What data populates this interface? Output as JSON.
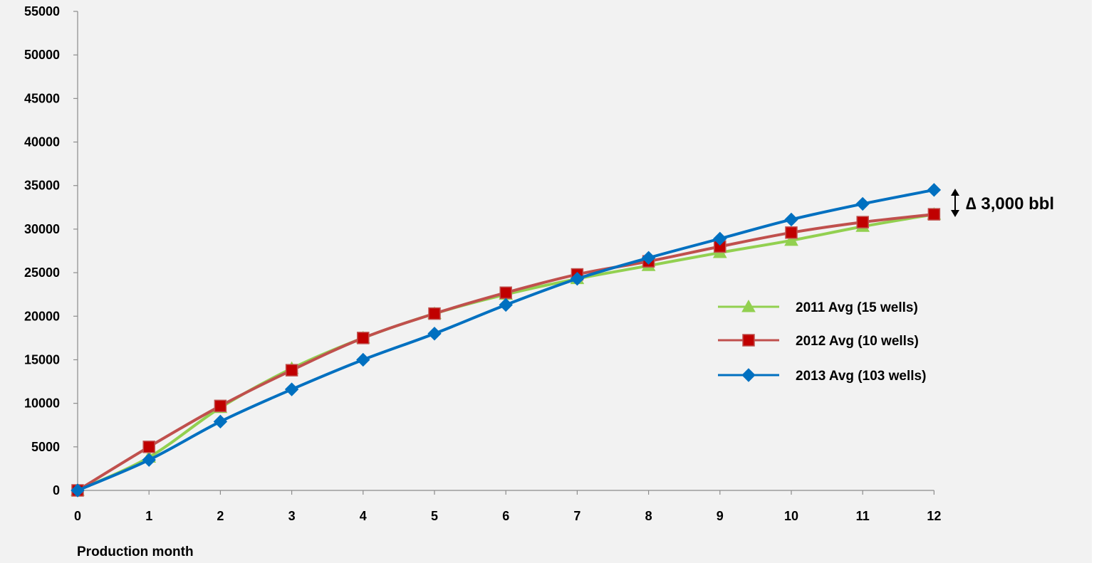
{
  "chart_data": {
    "type": "line",
    "x": [
      0,
      1,
      2,
      3,
      4,
      5,
      6,
      7,
      8,
      9,
      10,
      11,
      12
    ],
    "series": [
      {
        "name": "2011 Avg (15 wells)",
        "color": "#92d050",
        "marker": "triangle",
        "values": [
          0,
          3800,
          9500,
          14000,
          17500,
          20300,
          22500,
          24300,
          25800,
          27300,
          28700,
          30300,
          31700
        ]
      },
      {
        "name": "2012 Avg (10 wells)",
        "color": "#c0504d",
        "marker_color": "#c00000",
        "marker": "square",
        "values": [
          0,
          5000,
          9700,
          13800,
          17500,
          20300,
          22700,
          24800,
          26300,
          28000,
          29600,
          30800,
          31700
        ]
      },
      {
        "name": "2013 Avg (103 wells)",
        "color": "#0070c0",
        "marker": "diamond",
        "values": [
          0,
          3500,
          7900,
          11600,
          15000,
          18000,
          21300,
          24300,
          26700,
          28900,
          31100,
          32900,
          34500
        ]
      }
    ],
    "title": "",
    "xlabel": "Production month",
    "ylabel": "",
    "ylim": [
      0,
      55000
    ],
    "xlim": [
      0,
      12
    ],
    "y_ticks": [
      "0",
      "5000",
      "10000",
      "15000",
      "20000",
      "25000",
      "30000",
      "35000",
      "40000",
      "45000",
      "50000",
      "55000"
    ],
    "x_ticks": [
      "0",
      "1",
      "2",
      "3",
      "4",
      "5",
      "6",
      "7",
      "8",
      "9",
      "10",
      "11",
      "12"
    ],
    "grid": false,
    "legend_position": "right",
    "annotation": {
      "text": "∆ 3,000 bbl",
      "icon": "double-arrow-vertical-icon"
    }
  }
}
